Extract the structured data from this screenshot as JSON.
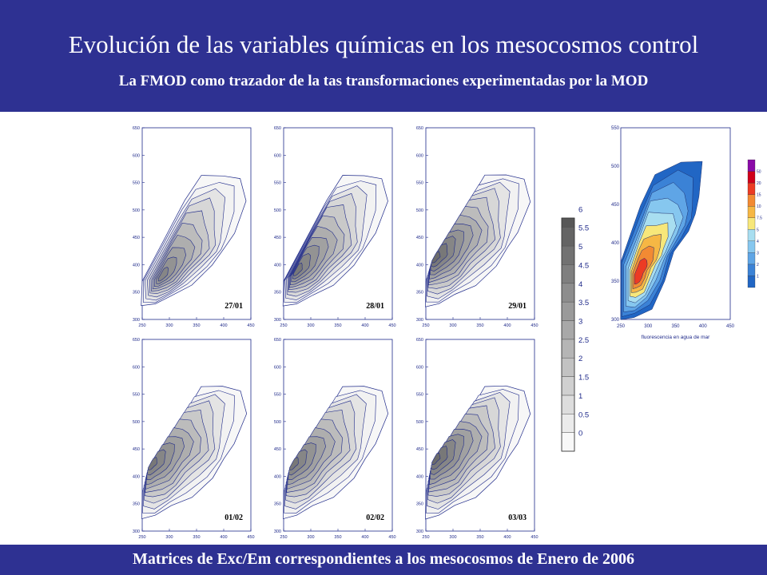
{
  "slide": {
    "title": "Evolución de las variables químicas en los mesocosmos control",
    "subtitle": "La FMOD como trazador de la tas transformaciones experimentadas por la MOD",
    "caption": "Matrices de Exc/Em correspondientes a los mesocosmos de Enero de 2006"
  },
  "colors": {
    "banner": "#2e3192",
    "contour_line": "#1f2a8a",
    "axis_frame": "#1f2a8a"
  },
  "chart_data": [
    {
      "type": "heatmap",
      "title": "",
      "label": "27/01",
      "xlabel": "",
      "ylabel": "",
      "xlim": [
        250,
        450
      ],
      "ylim": [
        300,
        650
      ],
      "xticks": [
        "250",
        "300",
        "350",
        "400",
        "450"
      ],
      "yticks": [
        "300",
        "350",
        "400",
        "450",
        "500",
        "550",
        "600",
        "650"
      ],
      "peak": {
        "x": 283,
        "y": 375,
        "value": 4.5
      },
      "levels": [
        0.5,
        1,
        1.5,
        2,
        2.5,
        3,
        3.5,
        4,
        4.5
      ]
    },
    {
      "type": "heatmap",
      "title": "",
      "label": "28/01",
      "xlabel": "",
      "ylabel": "",
      "xlim": [
        250,
        450
      ],
      "ylim": [
        300,
        650
      ],
      "xticks": [
        "250",
        "300",
        "350",
        "400",
        "450"
      ],
      "yticks": [
        "300",
        "350",
        "400",
        "450",
        "500",
        "550",
        "600",
        "650"
      ],
      "peak": {
        "x": 270,
        "y": 385,
        "value": 5
      },
      "levels": [
        0.5,
        1,
        1.5,
        2,
        2.5,
        3,
        3.5,
        4,
        4.5,
        5
      ]
    },
    {
      "type": "heatmap",
      "title": "",
      "label": "29/01",
      "xlabel": "",
      "ylabel": "",
      "xlim": [
        250,
        450
      ],
      "ylim": [
        300,
        650
      ],
      "xticks": [
        "250",
        "300",
        "350",
        "400",
        "450"
      ],
      "yticks": [
        "300",
        "350",
        "400",
        "450",
        "500",
        "550",
        "600",
        "650"
      ],
      "peak": {
        "x": 262,
        "y": 410,
        "value": 5.5
      },
      "levels": [
        0.5,
        1,
        1.5,
        2,
        2.5,
        3,
        3.5,
        4,
        4.5,
        5,
        5.5
      ]
    },
    {
      "type": "heatmap",
      "title": "",
      "label": "01/02",
      "xlabel": "",
      "ylabel": "",
      "xlim": [
        250,
        450
      ],
      "ylim": [
        300,
        650
      ],
      "xticks": [
        "250",
        "300",
        "350",
        "400",
        "450"
      ],
      "yticks": [
        "300",
        "350",
        "400",
        "450",
        "500",
        "550",
        "600",
        "650"
      ],
      "peak": {
        "x": 262,
        "y": 420,
        "value": 5
      },
      "levels": [
        0.5,
        1,
        1.5,
        2,
        2.5,
        3,
        3.5,
        4,
        4.5,
        5
      ]
    },
    {
      "type": "heatmap",
      "title": "",
      "label": "02/02",
      "xlabel": "",
      "ylabel": "",
      "xlim": [
        250,
        450
      ],
      "ylim": [
        300,
        650
      ],
      "xticks": [
        "250",
        "300",
        "350",
        "400",
        "450"
      ],
      "yticks": [
        "300",
        "350",
        "400",
        "450",
        "500",
        "550",
        "600",
        "650"
      ],
      "peak": {
        "x": 262,
        "y": 420,
        "value": 5
      },
      "levels": [
        0.5,
        1,
        1.5,
        2,
        2.5,
        3,
        3.5,
        4,
        4.5,
        5
      ]
    },
    {
      "type": "heatmap",
      "title": "",
      "label": "03/03",
      "xlabel": "",
      "ylabel": "",
      "xlim": [
        250,
        450
      ],
      "ylim": [
        300,
        650
      ],
      "xticks": [
        "250",
        "300",
        "350",
        "400",
        "450"
      ],
      "yticks": [
        "300",
        "350",
        "400",
        "450",
        "500",
        "550",
        "600",
        "650"
      ],
      "peak": {
        "x": 262,
        "y": 430,
        "value": 5.5
      },
      "levels": [
        0.5,
        1,
        1.5,
        2,
        2.5,
        3,
        3.5,
        4,
        4.5,
        5,
        5.5
      ]
    },
    {
      "type": "heatmap",
      "title": "",
      "label": "",
      "xlabel": "fluorescencia en agua de mar",
      "ylabel": "",
      "xlim": [
        250,
        450
      ],
      "ylim": [
        300,
        550
      ],
      "xticks": [
        "250",
        "300",
        "350",
        "400",
        "450"
      ],
      "yticks": [
        "300",
        "350",
        "400",
        "450",
        "500",
        "550"
      ],
      "peak": {
        "x": 280,
        "y": 355,
        "value": 20
      },
      "levels": [
        1,
        2,
        3,
        4,
        5,
        7.5,
        10,
        15,
        20,
        50
      ]
    }
  ],
  "gray_scale": {
    "ticks": [
      "0",
      "0.5",
      "1",
      "1.5",
      "2",
      "2.5",
      "3",
      "3.5",
      "4",
      "4.5",
      "5",
      "5.5",
      "6"
    ],
    "min": 0,
    "max": 6.5
  },
  "color_scale": {
    "ticks": [
      "1",
      "2",
      "3",
      "4",
      "5",
      "7.5",
      "10",
      "15",
      "20",
      "50"
    ],
    "colors": [
      "#2166c4",
      "#3b82d6",
      "#5fa5e6",
      "#86c7ef",
      "#a8def0",
      "#f7e77a",
      "#f6b744",
      "#f28a33",
      "#ec3b24",
      "#d0001a",
      "#8a0aa8"
    ]
  }
}
